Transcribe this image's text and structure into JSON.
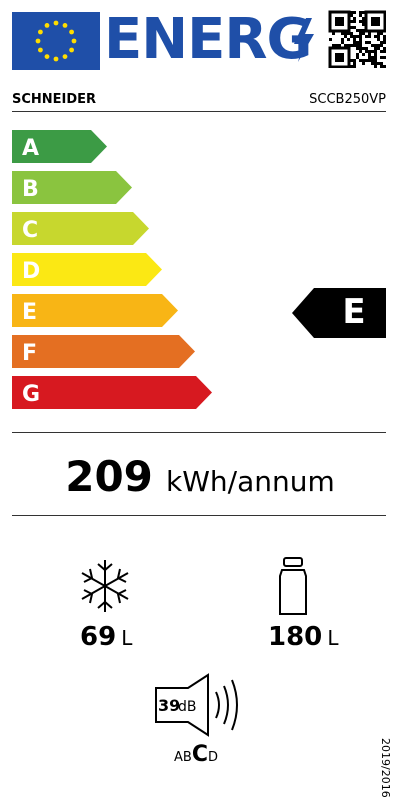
{
  "header": {
    "logo_text": "ENERG"
  },
  "product": {
    "brand": "SCHNEIDER",
    "model": "SCCB250VP"
  },
  "scale": {
    "classes": [
      "A",
      "B",
      "C",
      "D",
      "E",
      "F",
      "G"
    ],
    "rating": "E"
  },
  "energy": {
    "value": 209,
    "unit": "kWh/annum"
  },
  "freezer": {
    "value": 69,
    "unit": "L"
  },
  "fridge": {
    "value": 180,
    "unit": "L"
  },
  "noise": {
    "value": 39,
    "unit": "dB",
    "classes": [
      "A",
      "B",
      "C",
      "D"
    ]
  },
  "regulation": "2019/2016"
}
